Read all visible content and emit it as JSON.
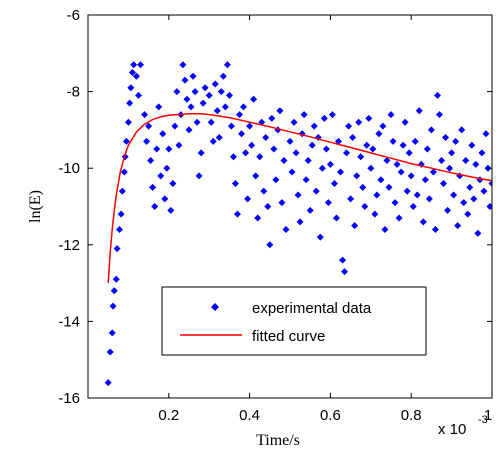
{
  "chart_data": {
    "type": "scatter",
    "title": "",
    "xlabel": "Time/s",
    "ylabel": "ln(E)",
    "x_multiplier_label": "x 10",
    "x_multiplier_exponent": "-3",
    "xlim": [
      0,
      1
    ],
    "ylim": [
      -16,
      -6
    ],
    "x_ticks": [
      0.2,
      0.4,
      0.6,
      0.8,
      1
    ],
    "x_tick_labels": [
      "0.2",
      "0.4",
      "0.6",
      "0.8",
      "1"
    ],
    "y_ticks": [
      -16,
      -14,
      -12,
      -10,
      -8,
      -6
    ],
    "y_tick_labels": [
      "-16",
      "-14",
      "-12",
      "-10",
      "-8",
      "-6"
    ],
    "grid": false,
    "legend_position": "bottom-center",
    "series": [
      {
        "name": "experimental data",
        "kind": "markers",
        "color": "#0000ff",
        "marker": "diamond",
        "points": [
          [
            0.05,
            -15.6
          ],
          [
            0.055,
            -14.8
          ],
          [
            0.06,
            -14.3
          ],
          [
            0.062,
            -13.6
          ],
          [
            0.065,
            -13.2
          ],
          [
            0.07,
            -12.9
          ],
          [
            0.072,
            -12.1
          ],
          [
            0.078,
            -11.6
          ],
          [
            0.082,
            -11.2
          ],
          [
            0.085,
            -10.6
          ],
          [
            0.09,
            -10.1
          ],
          [
            0.092,
            -9.7
          ],
          [
            0.095,
            -9.3
          ],
          [
            0.1,
            -8.8
          ],
          [
            0.103,
            -8.3
          ],
          [
            0.106,
            -7.9
          ],
          [
            0.11,
            -7.5
          ],
          [
            0.113,
            -7.3
          ],
          [
            0.12,
            -7.6
          ],
          [
            0.125,
            -8.1
          ],
          [
            0.13,
            -7.3
          ],
          [
            0.14,
            -8.6
          ],
          [
            0.145,
            -9.3
          ],
          [
            0.15,
            -8.9
          ],
          [
            0.155,
            -9.8
          ],
          [
            0.16,
            -10.5
          ],
          [
            0.165,
            -11.0
          ],
          [
            0.17,
            -9.5
          ],
          [
            0.175,
            -8.4
          ],
          [
            0.18,
            -10.2
          ],
          [
            0.185,
            -9.1
          ],
          [
            0.19,
            -10.8
          ],
          [
            0.195,
            -10.0
          ],
          [
            0.2,
            -9.5
          ],
          [
            0.205,
            -11.1
          ],
          [
            0.21,
            -10.4
          ],
          [
            0.215,
            -8.9
          ],
          [
            0.22,
            -8.0
          ],
          [
            0.225,
            -9.4
          ],
          [
            0.23,
            -8.6
          ],
          [
            0.235,
            -7.3
          ],
          [
            0.24,
            -7.7
          ],
          [
            0.245,
            -8.2
          ],
          [
            0.25,
            -9.0
          ],
          [
            0.255,
            -8.4
          ],
          [
            0.26,
            -7.6
          ],
          [
            0.265,
            -8.0
          ],
          [
            0.27,
            -8.8
          ],
          [
            0.275,
            -10.2
          ],
          [
            0.28,
            -9.6
          ],
          [
            0.285,
            -8.3
          ],
          [
            0.29,
            -7.9
          ],
          [
            0.3,
            -8.1
          ],
          [
            0.305,
            -8.8
          ],
          [
            0.31,
            -9.3
          ],
          [
            0.315,
            -7.8
          ],
          [
            0.32,
            -8.5
          ],
          [
            0.325,
            -9.2
          ],
          [
            0.33,
            -8.0
          ],
          [
            0.335,
            -7.6
          ],
          [
            0.34,
            -8.4
          ],
          [
            0.345,
            -7.3
          ],
          [
            0.35,
            -8.1
          ],
          [
            0.355,
            -8.9
          ],
          [
            0.36,
            -9.7
          ],
          [
            0.365,
            -10.4
          ],
          [
            0.37,
            -11.2
          ],
          [
            0.375,
            -8.6
          ],
          [
            0.38,
            -9.1
          ],
          [
            0.385,
            -8.4
          ],
          [
            0.39,
            -9.6
          ],
          [
            0.395,
            -10.8
          ],
          [
            0.4,
            -8.9
          ],
          [
            0.405,
            -9.4
          ],
          [
            0.41,
            -8.2
          ],
          [
            0.415,
            -10.2
          ],
          [
            0.42,
            -11.3
          ],
          [
            0.425,
            -9.7
          ],
          [
            0.43,
            -8.8
          ],
          [
            0.435,
            -10.6
          ],
          [
            0.44,
            -9.2
          ],
          [
            0.445,
            -11.0
          ],
          [
            0.45,
            -12.0
          ],
          [
            0.455,
            -8.7
          ],
          [
            0.46,
            -9.5
          ],
          [
            0.465,
            -10.3
          ],
          [
            0.47,
            -9.0
          ],
          [
            0.475,
            -8.5
          ],
          [
            0.48,
            -10.9
          ],
          [
            0.485,
            -9.8
          ],
          [
            0.49,
            -11.6
          ],
          [
            0.5,
            -9.3
          ],
          [
            0.505,
            -10.1
          ],
          [
            0.51,
            -8.8
          ],
          [
            0.515,
            -9.6
          ],
          [
            0.52,
            -10.7
          ],
          [
            0.525,
            -11.4
          ],
          [
            0.53,
            -9.1
          ],
          [
            0.535,
            -8.6
          ],
          [
            0.54,
            -10.3
          ],
          [
            0.545,
            -9.8
          ],
          [
            0.55,
            -11.1
          ],
          [
            0.555,
            -9.4
          ],
          [
            0.56,
            -8.9
          ],
          [
            0.565,
            -10.6
          ],
          [
            0.57,
            -9.2
          ],
          [
            0.575,
            -11.8
          ],
          [
            0.58,
            -10.0
          ],
          [
            0.585,
            -8.7
          ],
          [
            0.59,
            -9.5
          ],
          [
            0.595,
            -10.9
          ],
          [
            0.6,
            -9.9
          ],
          [
            0.605,
            -8.6
          ],
          [
            0.61,
            -10.4
          ],
          [
            0.615,
            -11.3
          ],
          [
            0.62,
            -9.3
          ],
          [
            0.625,
            -10.1
          ],
          [
            0.63,
            -12.4
          ],
          [
            0.635,
            -12.7
          ],
          [
            0.64,
            -9.6
          ],
          [
            0.645,
            -8.9
          ],
          [
            0.65,
            -10.8
          ],
          [
            0.655,
            -9.2
          ],
          [
            0.66,
            -11.5
          ],
          [
            0.665,
            -10.2
          ],
          [
            0.67,
            -8.8
          ],
          [
            0.675,
            -9.7
          ],
          [
            0.68,
            -10.5
          ],
          [
            0.685,
            -11.0
          ],
          [
            0.69,
            -9.4
          ],
          [
            0.695,
            -8.7
          ],
          [
            0.7,
            -10.0
          ],
          [
            0.705,
            -9.5
          ],
          [
            0.71,
            -11.2
          ],
          [
            0.715,
            -10.7
          ],
          [
            0.72,
            -9.1
          ],
          [
            0.725,
            -10.3
          ],
          [
            0.73,
            -8.9
          ],
          [
            0.735,
            -11.6
          ],
          [
            0.74,
            -9.8
          ],
          [
            0.745,
            -10.5
          ],
          [
            0.75,
            -8.6
          ],
          [
            0.755,
            -9.3
          ],
          [
            0.76,
            -10.9
          ],
          [
            0.765,
            -9.9
          ],
          [
            0.77,
            -11.3
          ],
          [
            0.775,
            -10.1
          ],
          [
            0.78,
            -9.4
          ],
          [
            0.785,
            -8.8
          ],
          [
            0.79,
            -10.6
          ],
          [
            0.795,
            -9.6
          ],
          [
            0.8,
            -10.2
          ],
          [
            0.805,
            -11.0
          ],
          [
            0.81,
            -9.3
          ],
          [
            0.815,
            -10.7
          ],
          [
            0.82,
            -8.5
          ],
          [
            0.825,
            -9.9
          ],
          [
            0.83,
            -11.4
          ],
          [
            0.835,
            -10.3
          ],
          [
            0.84,
            -9.5
          ],
          [
            0.845,
            -10.8
          ],
          [
            0.85,
            -9.0
          ],
          [
            0.855,
            -10.1
          ],
          [
            0.86,
            -11.6
          ],
          [
            0.865,
            -8.1
          ],
          [
            0.87,
            -8.6
          ],
          [
            0.875,
            -9.8
          ],
          [
            0.88,
            -10.4
          ],
          [
            0.885,
            -9.2
          ],
          [
            0.89,
            -11.1
          ],
          [
            0.895,
            -10.0
          ],
          [
            0.9,
            -9.6
          ],
          [
            0.905,
            -10.7
          ],
          [
            0.91,
            -9.3
          ],
          [
            0.915,
            -11.5
          ],
          [
            0.92,
            -10.2
          ],
          [
            0.925,
            -9.0
          ],
          [
            0.93,
            -10.9
          ],
          [
            0.935,
            -9.8
          ],
          [
            0.94,
            -11.2
          ],
          [
            0.945,
            -10.5
          ],
          [
            0.95,
            -9.4
          ],
          [
            0.955,
            -10.8
          ],
          [
            0.96,
            -9.9
          ],
          [
            0.965,
            -11.7
          ],
          [
            0.97,
            -10.3
          ],
          [
            0.975,
            -9.6
          ],
          [
            0.98,
            -10.6
          ],
          [
            0.985,
            -9.1
          ],
          [
            0.99,
            -10.0
          ],
          [
            0.995,
            -11.0
          ],
          [
            1.0,
            -10.4
          ]
        ]
      },
      {
        "name": "fitted curve",
        "kind": "line",
        "color": "#ff0000",
        "points": [
          [
            0.05,
            -13.0
          ],
          [
            0.055,
            -12.2
          ],
          [
            0.06,
            -11.6
          ],
          [
            0.065,
            -11.1
          ],
          [
            0.07,
            -10.7
          ],
          [
            0.08,
            -10.1
          ],
          [
            0.09,
            -9.7
          ],
          [
            0.1,
            -9.4
          ],
          [
            0.12,
            -9.05
          ],
          [
            0.14,
            -8.85
          ],
          [
            0.16,
            -8.73
          ],
          [
            0.18,
            -8.66
          ],
          [
            0.2,
            -8.62
          ],
          [
            0.22,
            -8.6
          ],
          [
            0.25,
            -8.58
          ],
          [
            0.28,
            -8.58
          ],
          [
            0.3,
            -8.6
          ],
          [
            0.35,
            -8.68
          ],
          [
            0.4,
            -8.8
          ],
          [
            0.45,
            -8.92
          ],
          [
            0.5,
            -9.05
          ],
          [
            0.55,
            -9.18
          ],
          [
            0.6,
            -9.32
          ],
          [
            0.65,
            -9.46
          ],
          [
            0.7,
            -9.6
          ],
          [
            0.75,
            -9.74
          ],
          [
            0.8,
            -9.88
          ],
          [
            0.85,
            -10.0
          ],
          [
            0.9,
            -10.12
          ],
          [
            0.95,
            -10.23
          ],
          [
            1.0,
            -10.33
          ]
        ]
      }
    ]
  }
}
